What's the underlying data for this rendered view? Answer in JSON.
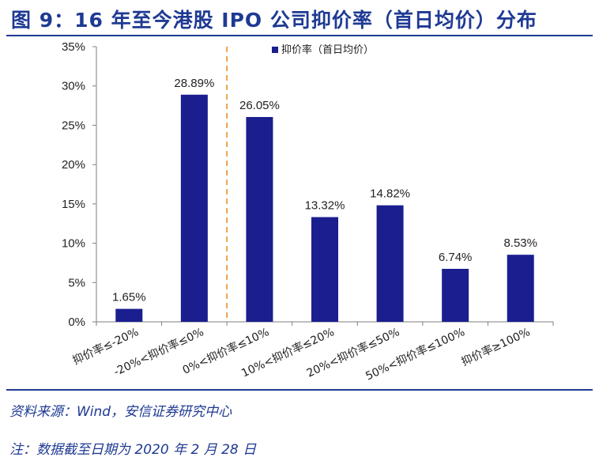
{
  "figure": {
    "title": "图 9：16 年至今港股 IPO 公司抑价率（首日均价）分布",
    "source": "资料来源：Wind，安信证券研究中心",
    "note": "注：数据截至日期为 2020 年 2 月 28 日"
  },
  "colors": {
    "bar": "#1a1e8e",
    "title": "#1f3a93",
    "divider": "#f0a04b",
    "axis": "#7f7f7f",
    "text": "#222222"
  },
  "chart_data": {
    "type": "bar",
    "categories": [
      "抑价率≤-20%",
      "-20%<抑价率≤0%",
      "0%<抑价率≤10%",
      "10%<抑价率≤20%",
      "20%<抑价率≤50%",
      "50%<抑价率≤100%",
      "抑价率≥100%"
    ],
    "series": [
      {
        "name": "抑价率（首日均价）",
        "values": [
          1.65,
          28.89,
          26.05,
          13.32,
          14.82,
          6.74,
          8.53
        ]
      }
    ],
    "data_labels": [
      "1.65%",
      "28.89%",
      "26.05%",
      "13.32%",
      "14.82%",
      "6.74%",
      "8.53%"
    ],
    "yticks": [
      "0%",
      "5%",
      "10%",
      "15%",
      "20%",
      "25%",
      "30%",
      "35%"
    ],
    "ylim": [
      0,
      35
    ],
    "legend_position": "top-right",
    "divider_after_category": "-20%<抑价率≤0%",
    "grid": false
  }
}
